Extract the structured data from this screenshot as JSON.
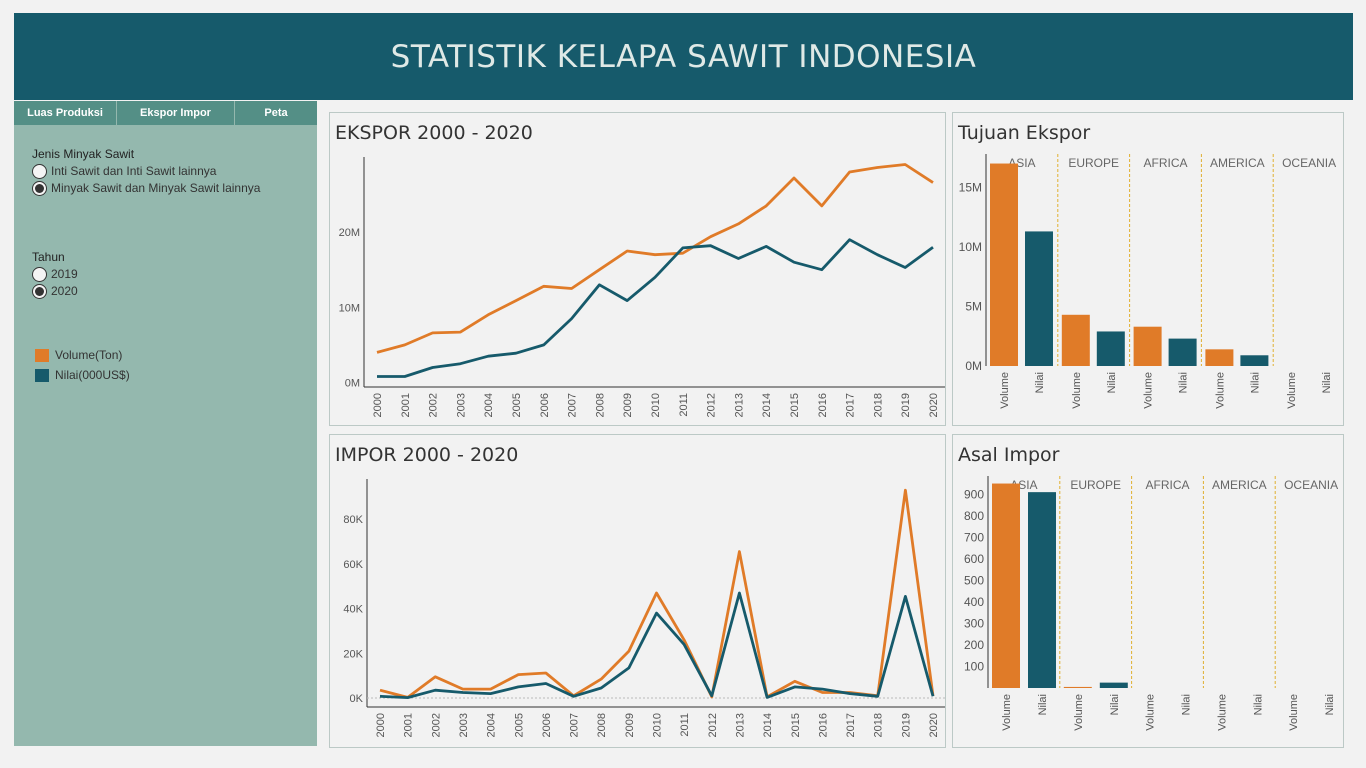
{
  "header": {
    "title": "STATISTIK KELAPA SAWIT INDONESIA"
  },
  "tabs": [
    {
      "label": "Luas Produksi"
    },
    {
      "label": "Ekspor Impor"
    },
    {
      "label": "Peta"
    }
  ],
  "filters": {
    "jenis": {
      "title": "Jenis Minyak Sawit",
      "options": [
        "Inti Sawit dan Inti Sawit lainnya",
        "Minyak Sawit dan Minyak Sawit lainnya"
      ],
      "selected_index": 1
    },
    "tahun": {
      "title": "Tahun",
      "options": [
        "2019",
        "2020"
      ],
      "selected_index": 1
    }
  },
  "legend": [
    {
      "label": "Volume(Ton)",
      "color": "#e07b28"
    },
    {
      "label": "Nilai(000US$)",
      "color": "#165a6b"
    }
  ],
  "colors": {
    "volume": "#e07b28",
    "nilai": "#165a6b",
    "header": "#165a6b",
    "sidebar": "#94b8ae",
    "tabs": "#548f86"
  },
  "chart_data": [
    {
      "id": "ekspor",
      "title": "EKSPOR 2000 - 2020",
      "type": "line",
      "x": [
        "2000",
        "2001",
        "2002",
        "2003",
        "2004",
        "2005",
        "2006",
        "2007",
        "2008",
        "2009",
        "2010",
        "2011",
        "2012",
        "2013",
        "2014",
        "2015",
        "2016",
        "2017",
        "2018",
        "2019",
        "2020"
      ],
      "series": [
        {
          "key": "volume",
          "values": [
            4.0,
            5.0,
            6.6,
            6.7,
            9.0,
            10.9,
            12.8,
            12.5,
            15.0,
            17.5,
            17.0,
            17.2,
            19.4,
            21.1,
            23.5,
            27.2,
            23.5,
            28.0,
            28.6,
            29.0,
            26.6
          ]
        },
        {
          "key": "nilai",
          "values": [
            0.8,
            0.8,
            2.0,
            2.5,
            3.5,
            3.9,
            5.0,
            8.5,
            13.0,
            10.9,
            14.0,
            17.9,
            18.2,
            16.5,
            18.1,
            16.0,
            15.0,
            19.0,
            17.0,
            15.3,
            18.0
          ]
        }
      ],
      "ytick_labels": [
        "0M",
        "10M",
        "20M"
      ],
      "ytick_values": [
        0,
        10,
        20
      ],
      "ylim": [
        -0.6,
        30
      ],
      "unit": "millions"
    },
    {
      "id": "impor",
      "title": "IMPOR 2000 - 2020",
      "type": "line",
      "x": [
        "2000",
        "2001",
        "2002",
        "2003",
        "2004",
        "2005",
        "2006",
        "2007",
        "2008",
        "2009",
        "2010",
        "2011",
        "2012",
        "2013",
        "2014",
        "2015",
        "2016",
        "2017",
        "2018",
        "2019",
        "2020"
      ],
      "series": [
        {
          "key": "volume",
          "values": [
            3500,
            300,
            9500,
            4000,
            4000,
            10500,
            11200,
            1000,
            8500,
            21000,
            47000,
            26000,
            500,
            65500,
            500,
            7500,
            2500,
            2500,
            1000,
            93000,
            1000
          ]
        },
        {
          "key": "nilai",
          "values": [
            800,
            200,
            3500,
            2500,
            2000,
            5000,
            6500,
            800,
            4500,
            13500,
            38000,
            24000,
            1000,
            47000,
            300,
            5000,
            4000,
            2000,
            800,
            45500,
            800
          ]
        }
      ],
      "ytick_labels": [
        "0K",
        "20K",
        "40K",
        "60K",
        "80K"
      ],
      "ytick_values": [
        0,
        20000,
        40000,
        60000,
        80000
      ],
      "ylim": [
        -4000,
        98000
      ]
    },
    {
      "id": "tujuan",
      "title": "Tujuan Ekspor",
      "type": "bar",
      "categories": [
        "ASIA",
        "EUROPE",
        "AFRICA",
        "AMERICA",
        "OCEANIA"
      ],
      "measures": [
        "Volume",
        "Nilai"
      ],
      "values": {
        "volume": [
          17.0,
          4.3,
          3.3,
          1.4,
          0
        ],
        "nilai": [
          11.3,
          2.9,
          2.3,
          0.9,
          0
        ]
      },
      "ytick_labels": [
        "0M",
        "5M",
        "10M",
        "15M"
      ],
      "ytick_values": [
        0,
        5,
        10,
        15
      ],
      "ylim": [
        0,
        17.8
      ],
      "unit": "millions"
    },
    {
      "id": "asal",
      "title": "Asal Impor",
      "type": "bar",
      "categories": [
        "ASIA",
        "EUROPE",
        "AFRICA",
        "AMERICA",
        "OCEANIA"
      ],
      "measures": [
        "Volume",
        "Nilai"
      ],
      "values": {
        "volume": [
          950,
          5,
          0,
          0,
          0
        ],
        "nilai": [
          910,
          25,
          0,
          0,
          0
        ]
      },
      "ytick_labels": [
        "100",
        "200",
        "300",
        "400",
        "500",
        "600",
        "700",
        "800",
        "900"
      ],
      "ytick_values": [
        100,
        200,
        300,
        400,
        500,
        600,
        700,
        800,
        900
      ],
      "ylim": [
        0,
        985
      ]
    }
  ]
}
